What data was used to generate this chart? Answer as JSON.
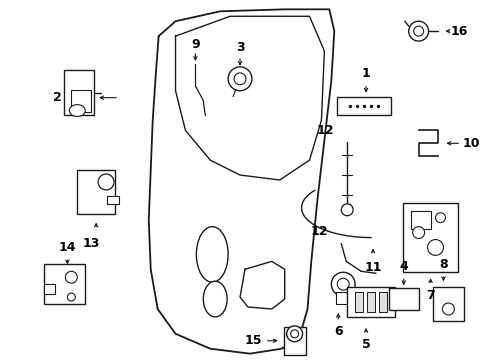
{
  "background_color": "#ffffff",
  "line_color": "#1a1a1a",
  "label_color": "#000000",
  "fig_width": 4.89,
  "fig_height": 3.6,
  "dpi": 100,
  "font_size_label": 9.0
}
